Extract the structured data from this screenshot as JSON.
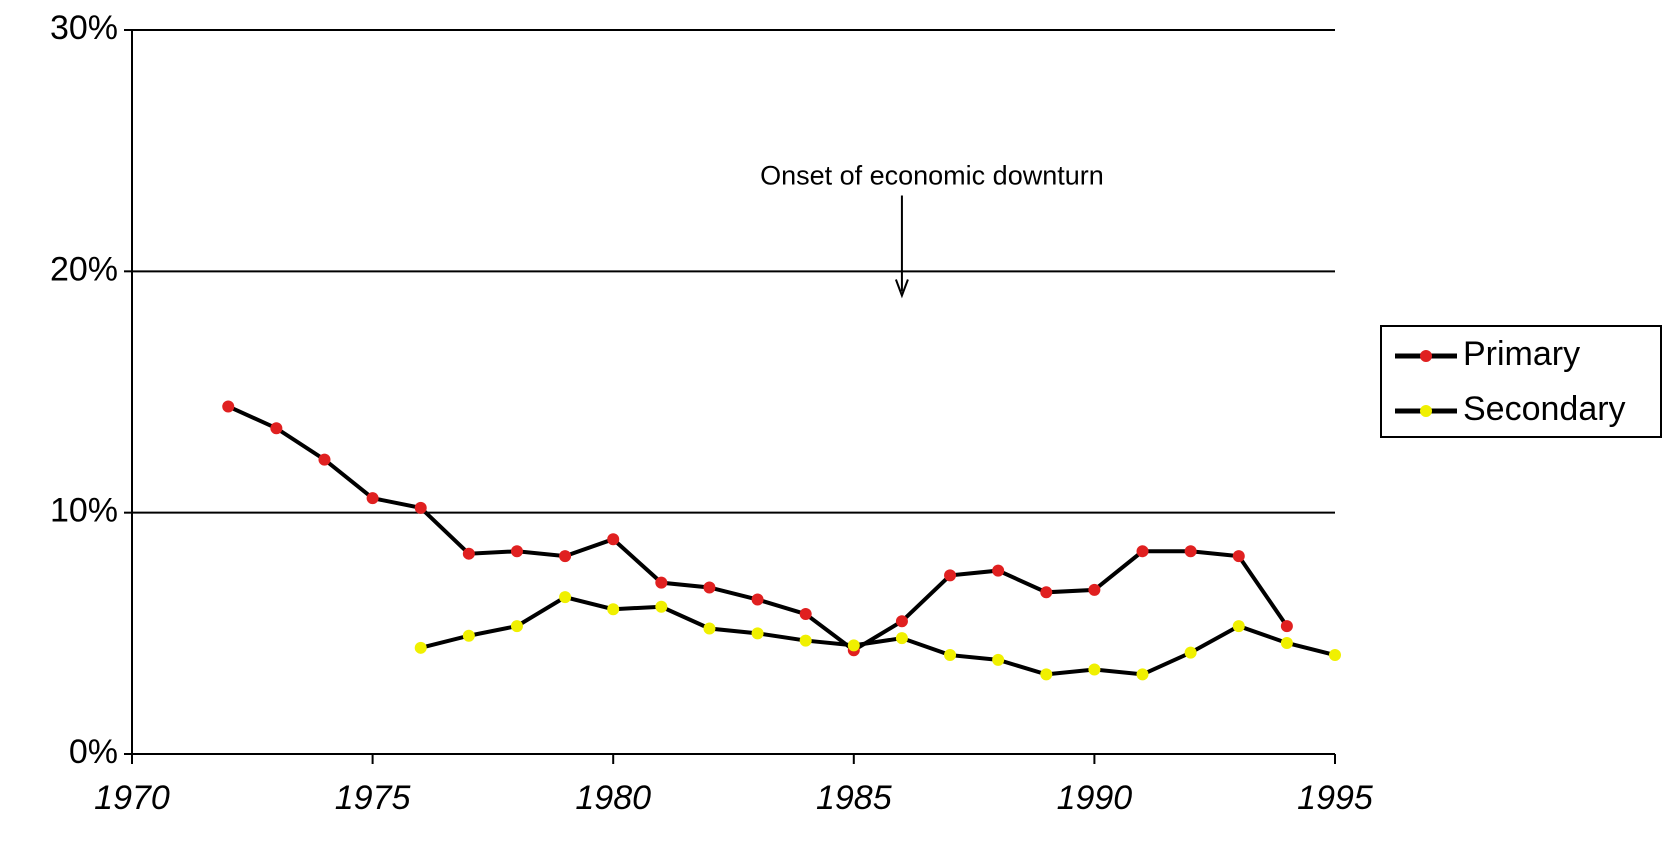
{
  "chart_data": {
    "type": "line",
    "x": [
      1972,
      1973,
      1974,
      1975,
      1976,
      1977,
      1978,
      1979,
      1980,
      1981,
      1982,
      1983,
      1984,
      1985,
      1986,
      1987,
      1988,
      1989,
      1990,
      1991,
      1992,
      1993,
      1994,
      1995
    ],
    "series": [
      {
        "name": "Primary",
        "color": "#000000",
        "marker_color": "#e02020",
        "values": [
          14.4,
          13.5,
          12.2,
          10.6,
          10.2,
          8.3,
          8.4,
          8.2,
          8.9,
          7.1,
          6.9,
          6.4,
          5.8,
          4.3,
          5.5,
          7.4,
          7.6,
          6.7,
          6.8,
          8.4,
          8.4,
          8.2,
          5.3,
          null
        ]
      },
      {
        "name": "Secondary",
        "color": "#000000",
        "marker_color": "#f0f000",
        "values": [
          null,
          null,
          null,
          null,
          4.4,
          4.9,
          5.3,
          6.5,
          6.0,
          6.1,
          5.2,
          5.0,
          4.7,
          4.5,
          4.8,
          4.1,
          3.9,
          3.3,
          3.5,
          3.3,
          4.2,
          5.3,
          4.6,
          4.1
        ]
      }
    ],
    "xlim": [
      1970,
      1995
    ],
    "xticks": [
      1970,
      1975,
      1980,
      1985,
      1990,
      1995
    ],
    "ylim": [
      0,
      30
    ],
    "yticks": [
      {
        "value": 0,
        "label": "0%"
      },
      {
        "value": 10,
        "label": "10%"
      },
      {
        "value": 20,
        "label": "20%"
      },
      {
        "value": 30,
        "label": "30%"
      }
    ],
    "grid": true,
    "legend": "right",
    "annotations": [
      {
        "text": "Onset of economic downturn",
        "x": 1986,
        "y": 19
      }
    ]
  }
}
